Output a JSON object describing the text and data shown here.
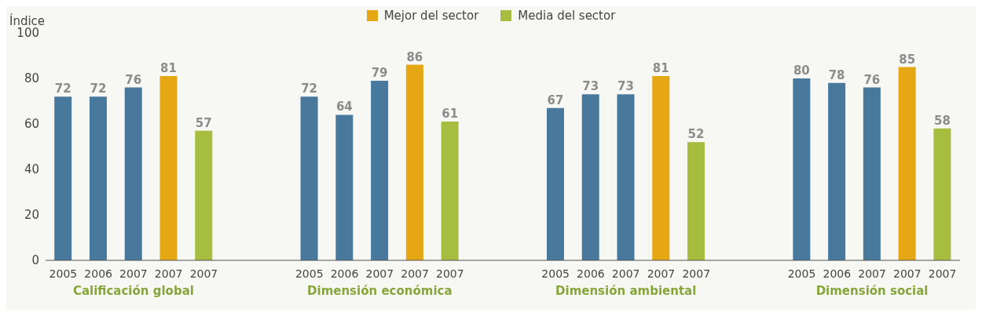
{
  "chart_data": {
    "type": "bar",
    "ylabel": "Índice",
    "categories": [
      "2005",
      "2006",
      "2007",
      "2007",
      "2007",
      null,
      null,
      "2005",
      "2006",
      "2007",
      "2007",
      "2007",
      null,
      null,
      "2005",
      "2006",
      "2007",
      "2007",
      "2007",
      null,
      null,
      "2005",
      "2006",
      "2007",
      "2007",
      "2007"
    ],
    "series": [
      {
        "color": "#48799c",
        "values": [
          72,
          72,
          76,
          null,
          null,
          null,
          null,
          72,
          64,
          79,
          null,
          null,
          null,
          null,
          67,
          73,
          73,
          null,
          null,
          null,
          null,
          80,
          78,
          76,
          null,
          null
        ]
      },
      {
        "name": "Mejor del sector",
        "color": "#e5a713",
        "values": [
          null,
          null,
          null,
          81,
          null,
          null,
          null,
          null,
          null,
          null,
          86,
          null,
          null,
          null,
          null,
          null,
          null,
          81,
          null,
          null,
          null,
          null,
          null,
          null,
          85,
          null
        ]
      },
      {
        "name": "Media del sector",
        "color": "#a6bd40",
        "values": [
          null,
          null,
          null,
          null,
          57,
          null,
          null,
          null,
          null,
          null,
          null,
          61,
          null,
          null,
          null,
          null,
          null,
          null,
          52,
          null,
          null,
          null,
          null,
          null,
          null,
          58
        ]
      }
    ],
    "annotations": [
      "Calificación global",
      "Dimensión económica",
      "Dimensión ambiental",
      "Dimensión social"
    ],
    "ylim": [
      0,
      100
    ],
    "yticks": [
      0,
      20,
      40,
      60,
      80,
      100
    ],
    "grid": false,
    "legend": "top",
    "data_labels": true
  }
}
